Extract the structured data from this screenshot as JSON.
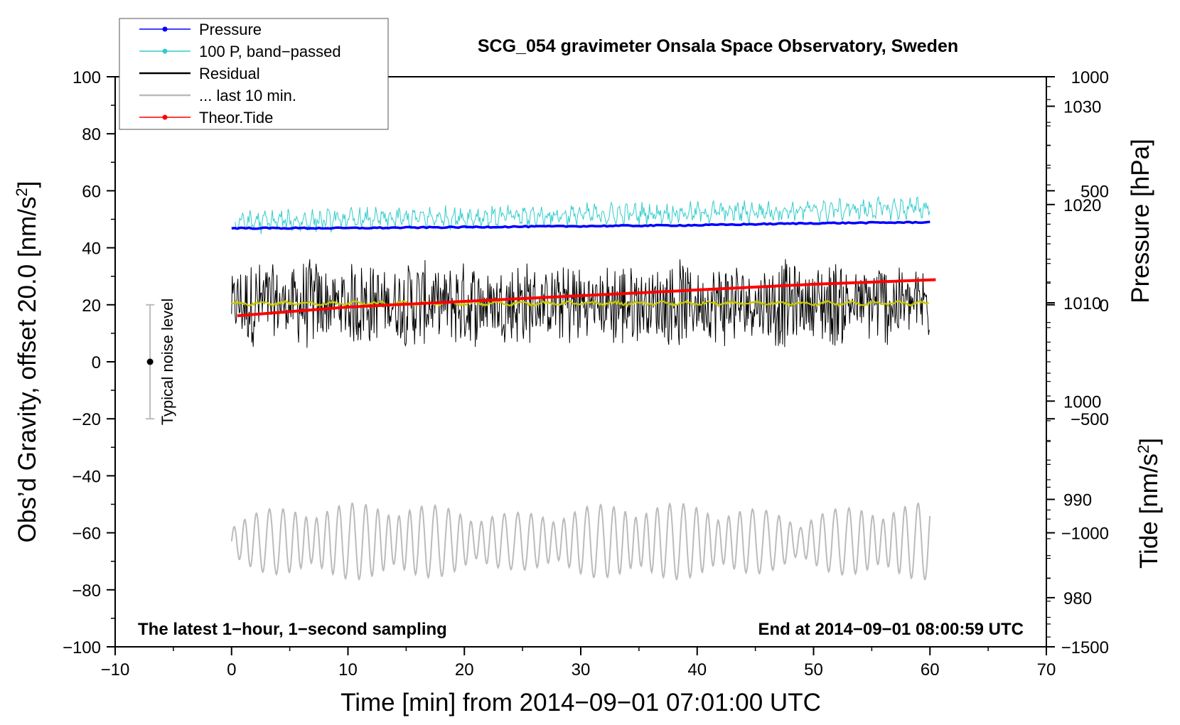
{
  "chart_data": {
    "type": "line",
    "title": "SCG_054 gravimeter Onsala Space Observatory, Sweden",
    "xlabel": "Time [min] from 2014−09−01 07:01:00 UTC",
    "ylabel_left": "Obs’d Gravity, offset 20.0 [nm/s",
    "ylabel_left_sup": "2",
    "ylabel_left_end": "]",
    "ylabel_pressure": "Pressure [hPa]",
    "ylabel_tide": "Tide [nm/s",
    "ylabel_tide_sup": "2",
    "ylabel_tide_end": "]",
    "xlim": [
      -10,
      70
    ],
    "ylim": [
      -100,
      100
    ],
    "pressure_lim": [
      975,
      1033
    ],
    "tide_lim": [
      -1500,
      1000
    ],
    "x_ticks": [
      -10,
      0,
      10,
      20,
      30,
      40,
      50,
      60,
      70
    ],
    "x_tick_labels": [
      "−10",
      "0",
      "10",
      "20",
      "30",
      "40",
      "50",
      "60",
      "70"
    ],
    "y_ticks": [
      -100,
      -80,
      -60,
      -40,
      -20,
      0,
      20,
      40,
      60,
      80,
      100
    ],
    "y_tick_labels": [
      "−100",
      "−80",
      "−60",
      "−40",
      "−20",
      "0",
      "20",
      "40",
      "60",
      "80",
      "100"
    ],
    "pressure_ticks": [
      980,
      990,
      1000,
      1010,
      1020,
      1030
    ],
    "pressure_tick_labels": [
      "980",
      "990",
      "1000",
      "1010",
      "1020",
      "1030"
    ],
    "tide_ticks": [
      -1500,
      -1000,
      -500,
      0,
      500,
      1000
    ],
    "tide_tick_labels": [
      "−1500",
      "−1000",
      "−500",
      "0",
      "500",
      "1000"
    ],
    "legend_position": "top-left",
    "legend": [
      {
        "label": "Pressure",
        "color": "#0000ff",
        "marker": true
      },
      {
        "label": "100 P, band−passed",
        "color": "#33cccc",
        "marker": true
      },
      {
        "label": "Residual",
        "color": "#000000",
        "marker": false
      },
      {
        "label": "... last 10 min.",
        "color": "#bbbbbb",
        "marker": false
      },
      {
        "label": "Theor.Tide",
        "color": "#ff0000",
        "marker": true
      }
    ],
    "series": [
      {
        "name": "Pressure",
        "axis": "pressure",
        "color": "#0000ff",
        "x": [
          0,
          10,
          20,
          30,
          40,
          50,
          60
        ],
        "values": [
          1017.6,
          1017.6,
          1017.7,
          1017.8,
          1017.9,
          1018.1,
          1018.2
        ]
      },
      {
        "name": "100 P, band−passed",
        "axis": "left",
        "color": "#33cccc",
        "center": [
          49,
          54
        ],
        "amplitude": 3.5
      },
      {
        "name": "Residual",
        "axis": "left",
        "color": "#000000",
        "center": 20.5,
        "amplitude": 12
      },
      {
        "name": "Residual (smoothed)",
        "axis": "left",
        "color": "#c8c800",
        "center": 20.5,
        "amplitude": 0.8
      },
      {
        "name": "... last 10 min.",
        "axis": "left",
        "color": "#bbbbbb",
        "center": -63,
        "amplitude": 9
      },
      {
        "name": "Theor.Tide",
        "axis": "tide",
        "color": "#ff0000",
        "x": [
          0,
          10,
          20,
          30,
          40,
          50,
          60.5
        ],
        "values": [
          -50,
          -10,
          15,
          40,
          65,
          90,
          110
        ]
      }
    ],
    "noise_bar": {
      "x": -7,
      "y_low": -20,
      "y_high": 20,
      "y_mid": 0,
      "label": "Typical noise level"
    },
    "annotations": {
      "bottom_left": "The latest 1−hour, 1−second sampling",
      "bottom_right": "End at 2014−09−01 08:00:59 UTC"
    }
  }
}
